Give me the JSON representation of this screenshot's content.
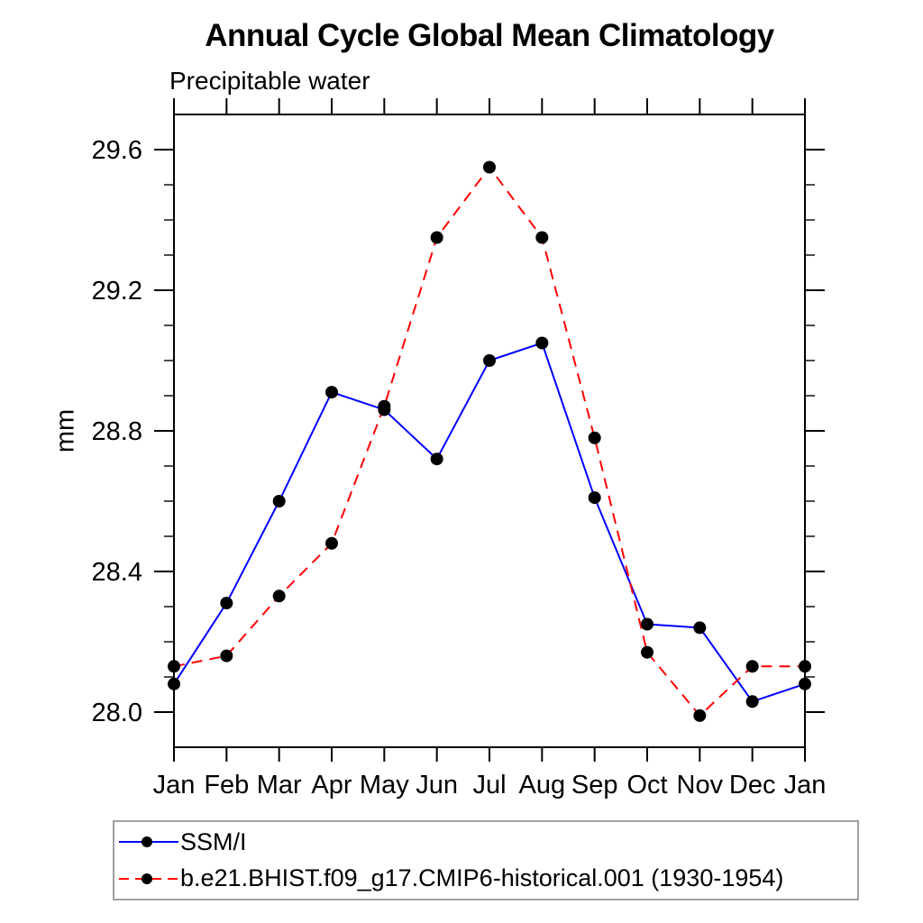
{
  "title": "Annual Cycle Global Mean Climatology",
  "subtitle": "Precipitable water",
  "ylabel": "mm",
  "chart_data": {
    "type": "line",
    "categories": [
      "Jan",
      "Feb",
      "Mar",
      "Apr",
      "May",
      "Jun",
      "Jul",
      "Aug",
      "Sep",
      "Oct",
      "Nov",
      "Dec",
      "Jan"
    ],
    "series": [
      {
        "name": "SSM/I",
        "color": "#0000ff",
        "style": "solid",
        "marker": "circle",
        "marker_color": "#000000",
        "values": [
          28.08,
          28.31,
          28.6,
          28.91,
          28.86,
          28.72,
          29.0,
          29.05,
          28.61,
          28.25,
          28.24,
          28.03,
          28.08
        ]
      },
      {
        "name": "b.e21.BHIST.f09_g17.CMIP6-historical.001 (1930-1954)",
        "color": "#ff0000",
        "style": "dashed",
        "marker": "circle",
        "marker_color": "#000000",
        "values": [
          28.13,
          28.16,
          28.33,
          28.48,
          28.87,
          29.35,
          29.55,
          29.35,
          28.78,
          28.17,
          27.99,
          28.13,
          28.13
        ]
      }
    ],
    "ylim": [
      27.9,
      29.7
    ],
    "yticks_major": [
      28.0,
      28.4,
      28.8,
      29.2,
      29.6
    ],
    "ytick_labels": [
      "28.0",
      "28.4",
      "28.8",
      "29.2",
      "29.6"
    ],
    "ytick_minor_step": 0.1,
    "xlabel": "",
    "ylabel": "mm",
    "grid": false,
    "legend_position": "bottom-left",
    "axis_color": "#000000",
    "text_color": "#000000"
  }
}
